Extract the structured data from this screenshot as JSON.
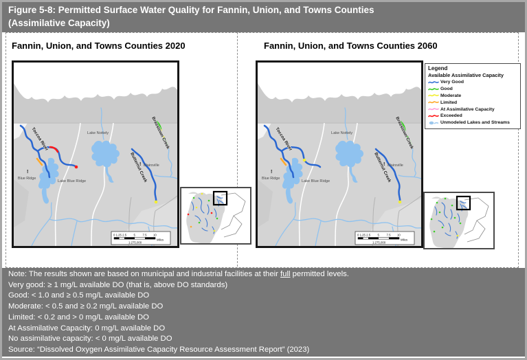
{
  "header": {
    "title_line1": "Figure 5-8: Permitted Surface Water Quality for Fannin, Union, and Towns Counties",
    "title_line2": "(Assimilative Capacity)"
  },
  "panels": {
    "left_title": "Fannin, Union, and Towns Counties 2020",
    "right_title": "Fannin, Union, and Towns Counties 2060"
  },
  "map_labels": {
    "toccoa_river": "Toccoa River",
    "lake_nottely": "Lake Nottely",
    "brasstown_creek": "Brasstown Creek",
    "butternut_creek": "Butternut Creek",
    "blairsville": "Blairsville",
    "blue_ridge": "Blue Ridge",
    "lake_blue_ridge": "Lake Blue Ridge",
    "town_marker": "!"
  },
  "scalebar": {
    "tick_left": "0 1.25 2.5",
    "tick_5": "5",
    "tick_75": "7.5",
    "tick_10": "10",
    "unit": "Miles",
    "ratio": "1:275,000"
  },
  "legend": {
    "title": "Legend",
    "subtitle": "Available Assimilative Capacity",
    "items": [
      {
        "label": "Very Good",
        "status": "very_good",
        "icon": "line"
      },
      {
        "label": "Good",
        "status": "good",
        "icon": "line"
      },
      {
        "label": "Moderate",
        "status": "moderate",
        "icon": "line"
      },
      {
        "label": "Limited",
        "status": "limited",
        "icon": "line"
      },
      {
        "label": "At Assimilative Capacity",
        "status": "at_capacity",
        "icon": "line"
      },
      {
        "label": "Exceeded",
        "status": "exceeded",
        "icon": "line"
      },
      {
        "label": "Unmodeled Lakes and Streams",
        "status": "unmodeled",
        "icon": "lake"
      }
    ]
  },
  "maps": {
    "m2020": {
      "overlays": [
        {
          "name": "brasstown-upper",
          "status": "good"
        },
        {
          "name": "brasstown-mid",
          "status": "moderate"
        },
        {
          "name": "brasstown-lower",
          "status": "good"
        },
        {
          "name": "toccoa-branch-mid",
          "status": "exceeded"
        },
        {
          "name": "toccoa-branch-end-point",
          "status": "exceeded"
        },
        {
          "name": "toccoa-side-segment",
          "status": "limited"
        },
        {
          "name": "butternut-end-point",
          "status": "moderate"
        }
      ]
    },
    "m2060": {
      "overlays": [
        {
          "name": "brasstown-upper",
          "status": "good"
        },
        {
          "name": "brasstown-mid",
          "status": "good"
        },
        {
          "name": "brasstown-lower",
          "status": "good"
        },
        {
          "name": "toccoa-branch-point",
          "status": "moderate"
        },
        {
          "name": "toccoa-side-segment",
          "status": "limited"
        },
        {
          "name": "butternut-end-point",
          "status": "moderate"
        }
      ]
    }
  },
  "notes": {
    "line1_prefix": "Note: The results shown are based on municipal and industrial facilities at their ",
    "line1_underlined": "full",
    "line1_suffix": " permitted levels.",
    "lines": [
      "Very good: ≥ 1 mg/L available DO (that is, above DO standards)",
      "Good: < 1.0 and ≥ 0.5 mg/L available DO",
      "Moderate: < 0.5 and ≥ 0.2 mg/L available DO",
      "Limited: < 0.2 and > 0 mg/L available DO",
      "At Assimilative Capacity: 0 mg/L available DO",
      "No assimilative capacity: < 0 mg/L available DO",
      "Source: “Dissolved Oxygen Assimilative Capacity Resource Assessment Report” (2023)"
    ]
  },
  "colors": {
    "header_bg": "#767676",
    "notes_bg": "#767676",
    "land_gray": "#d4d4d4",
    "blob_gray": "#cbcbcb",
    "light_patch": "#dedede",
    "state_line": "#c2c2c2",
    "county_white": "#ffffff",
    "county_gray": "#b3b3b3",
    "water_light": "#8fc2ef",
    "river_blue": "#2a67d1",
    "status": {
      "very_good": "#3a76d6",
      "good": "#3fce2a",
      "moderate": "#f2ee32",
      "limited": "#ffaa2b",
      "at_capacity": "#ff9ed9",
      "exceeded": "#ff1a1a",
      "unmodeled": "#9cc7ed"
    }
  }
}
